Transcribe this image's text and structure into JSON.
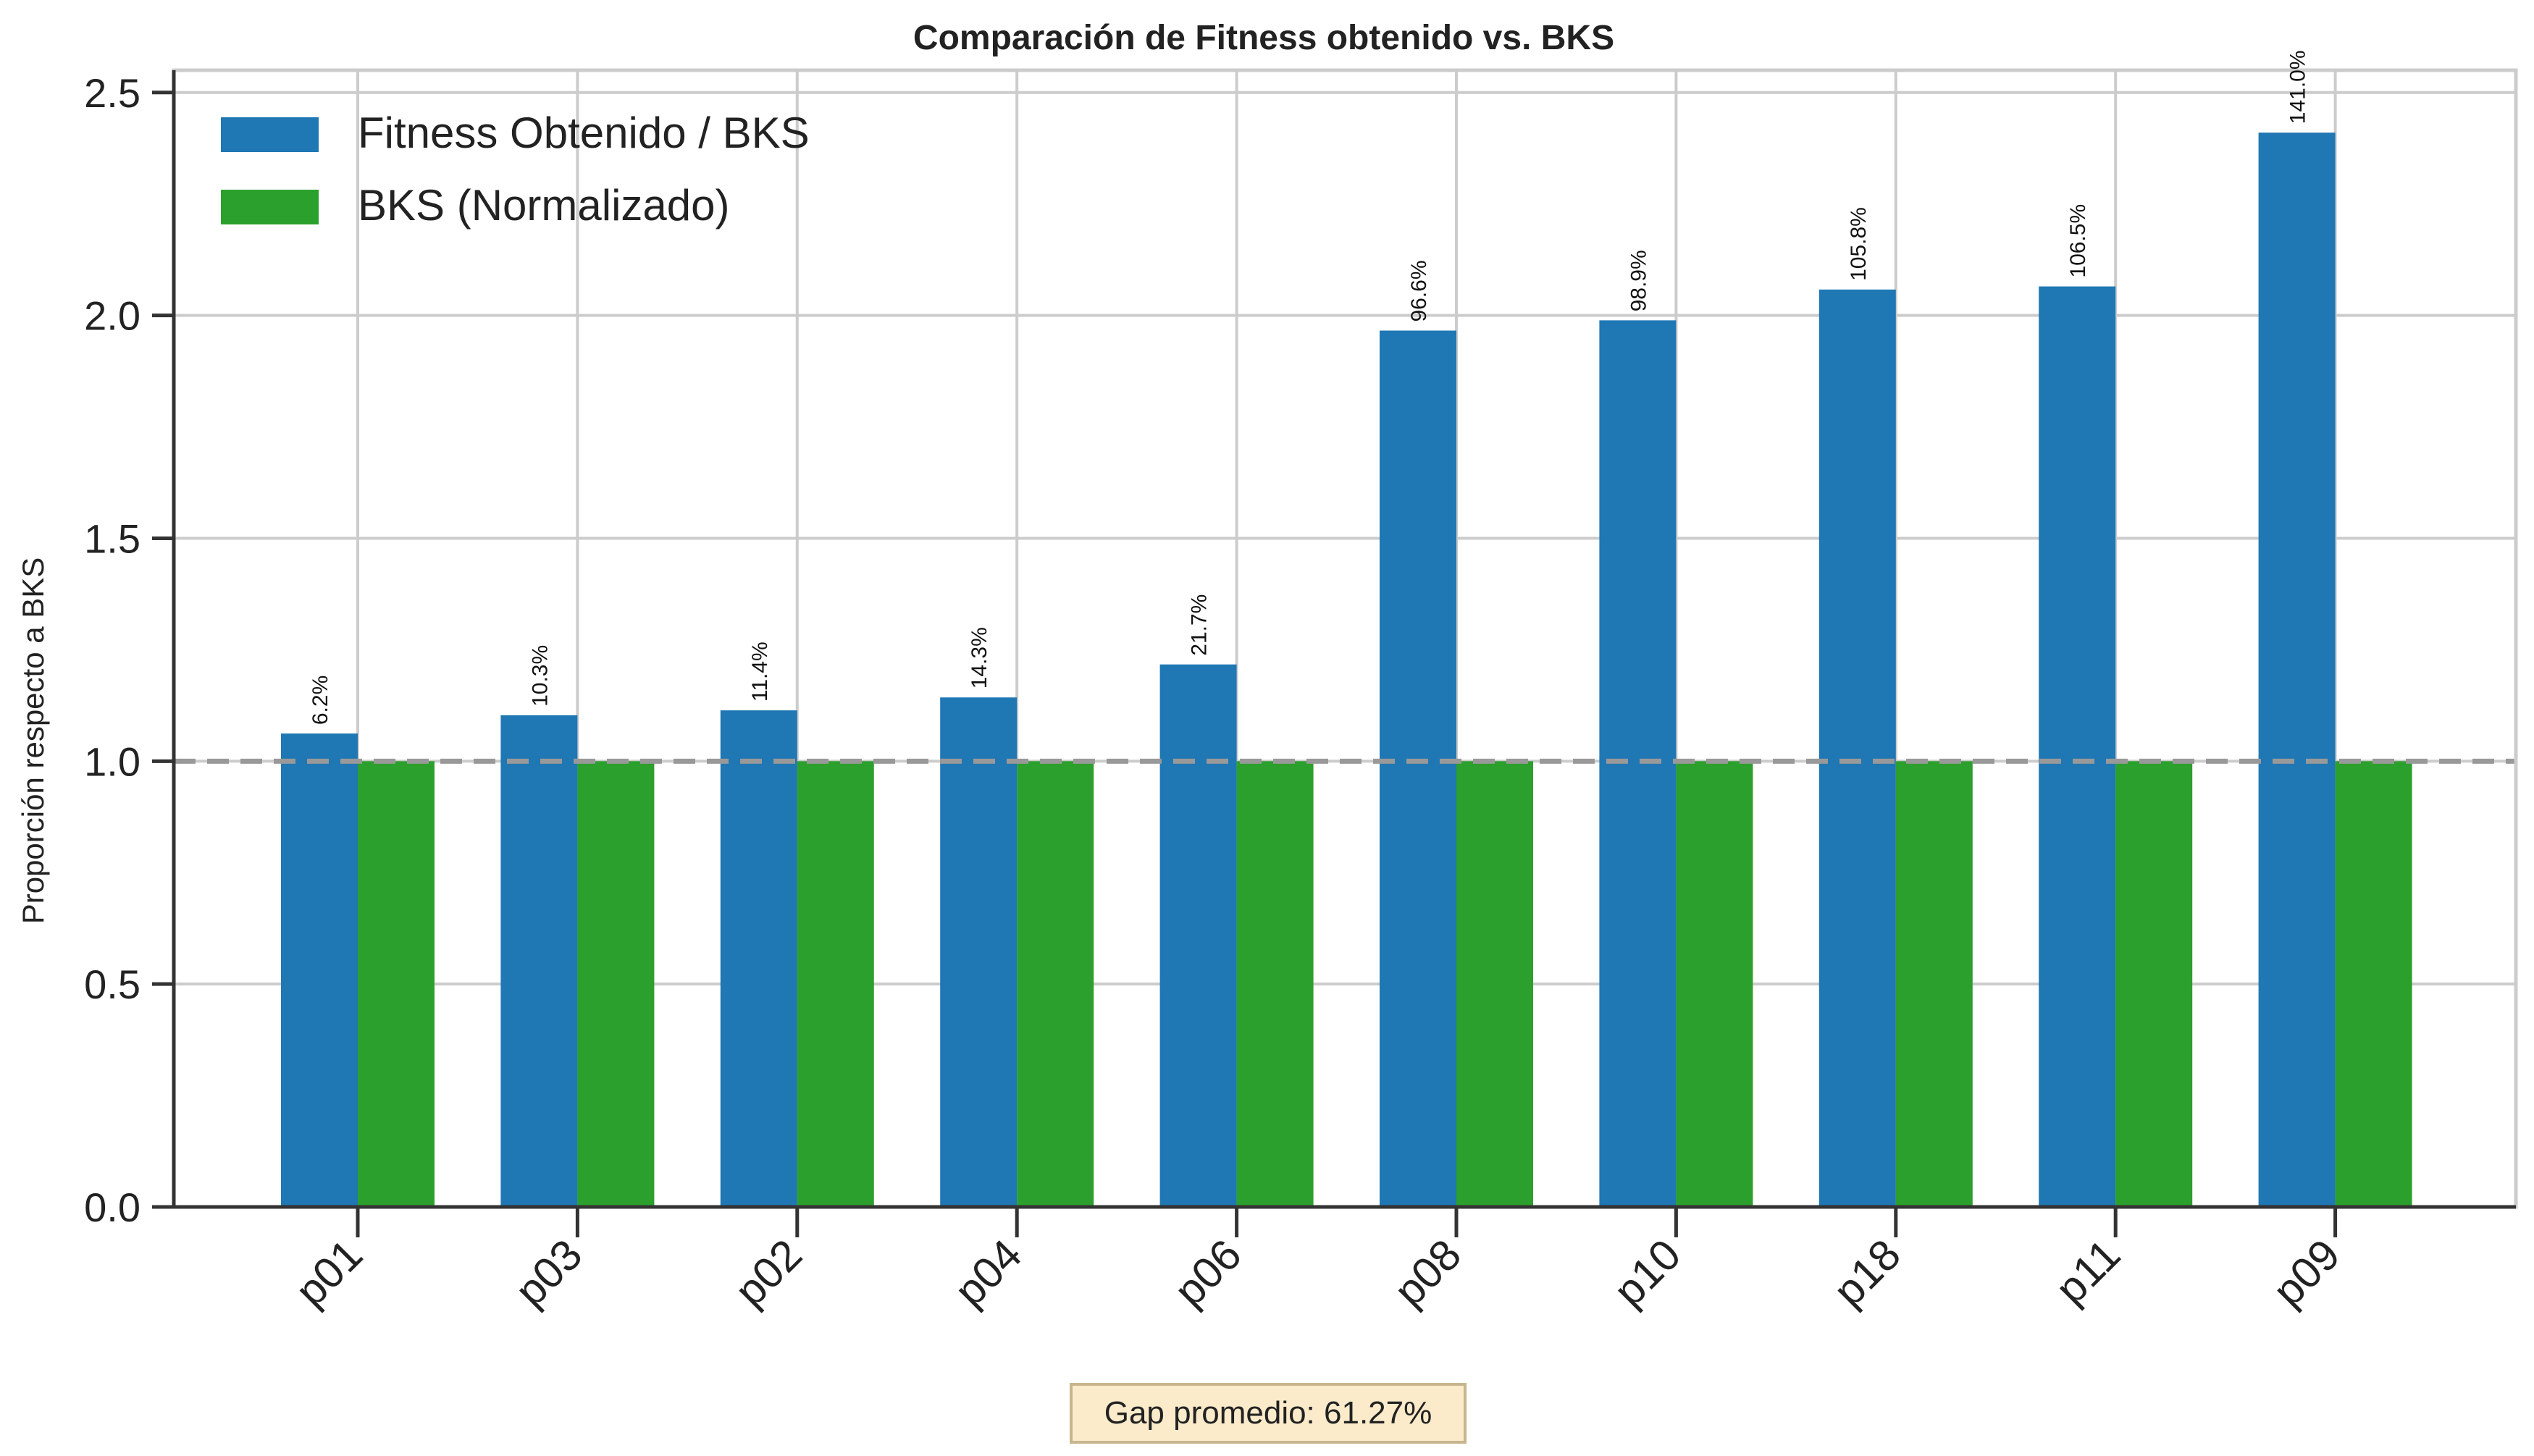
{
  "chart_data": {
    "type": "bar",
    "title": "Comparación de Fitness obtenido vs. BKS",
    "xlabel": "",
    "ylabel": "Proporción respecto a BKS",
    "categories": [
      "p01",
      "p03",
      "p02",
      "p04",
      "p06",
      "p08",
      "p10",
      "p18",
      "p11",
      "p09"
    ],
    "series": [
      {
        "name": "Fitness Obtenido / BKS",
        "color": "#1f77b4",
        "values": [
          1.062,
          1.103,
          1.114,
          1.143,
          1.217,
          1.966,
          1.989,
          2.058,
          2.065,
          2.41
        ],
        "labels": [
          "6.2%",
          "10.3%",
          "11.4%",
          "14.3%",
          "21.7%",
          "96.6%",
          "98.9%",
          "105.8%",
          "106.5%",
          "141.0%"
        ]
      },
      {
        "name": "BKS (Normalizado)",
        "color": "#2ca02c",
        "values": [
          1,
          1,
          1,
          1,
          1,
          1,
          1,
          1,
          1,
          1
        ]
      }
    ],
    "ylim": [
      0,
      2.55
    ],
    "yticks": [
      "0.0",
      "0.5",
      "1.0",
      "1.5",
      "2.0",
      "2.5"
    ],
    "reference_line": {
      "y": 1.0,
      "style": "dashed",
      "color": "#999999"
    },
    "grid": true,
    "legend_position": "top-left",
    "annotation": "Gap promedio: 61.27%"
  }
}
